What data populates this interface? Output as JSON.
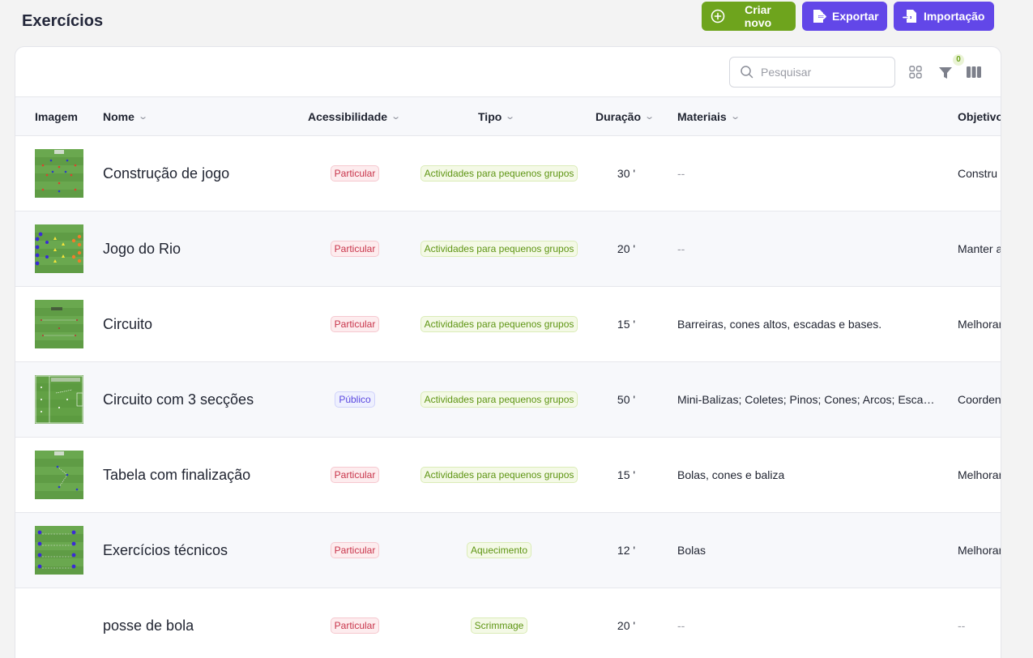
{
  "page": {
    "title": "Exercícios"
  },
  "actions": {
    "create_label": "Criar novo",
    "export_label": "Exportar",
    "import_label": "Importação"
  },
  "toolbar": {
    "search_placeholder": "Pesquisar",
    "filter_count": "0"
  },
  "columns": {
    "image": "Imagem",
    "name": "Nome",
    "accessibility": "Acessibilidade",
    "type": "Tipo",
    "duration": "Duração",
    "materials": "Materiais",
    "objective": "Objetivo"
  },
  "colors": {
    "accent_green": "#6ea41d",
    "accent_purple": "#6247e8",
    "badge_private": "#c8344a",
    "badge_public": "#5b48e0",
    "badge_type": "#5e9513"
  },
  "rows": [
    {
      "name": "Construção de jogo",
      "access": "Particular",
      "access_kind": "private",
      "type": "Actividades para pequenos grupos",
      "duration": "30 '",
      "materials": "--",
      "objective": "Constru",
      "thumb": "pitch-a"
    },
    {
      "name": "Jogo do Rio",
      "access": "Particular",
      "access_kind": "private",
      "type": "Actividades para pequenos grupos",
      "duration": "20 '",
      "materials": "--",
      "objective": "Manter a",
      "thumb": "pitch-b"
    },
    {
      "name": "Circuito",
      "access": "Particular",
      "access_kind": "private",
      "type": "Actividades para pequenos grupos",
      "duration": "15 '",
      "materials": "Barreiras, cones altos, escadas e bases.",
      "objective": "Melhorar",
      "thumb": "pitch-c"
    },
    {
      "name": "Circuito com 3 secções",
      "access": "Público",
      "access_kind": "public",
      "type": "Actividades para pequenos grupos",
      "duration": "50 '",
      "materials": "Mini-Balizas; Coletes; Pinos; Cones; Arcos; Escadas",
      "objective": "Coorden",
      "thumb": "pitch-d"
    },
    {
      "name": "Tabela com finalização",
      "access": "Particular",
      "access_kind": "private",
      "type": "Actividades para pequenos grupos",
      "duration": "15 '",
      "materials": "Bolas, cones e baliza",
      "objective": "Melhorar",
      "thumb": "pitch-e"
    },
    {
      "name": "Exercícios técnicos",
      "access": "Particular",
      "access_kind": "private",
      "type": "Aquecimento",
      "duration": "12 '",
      "materials": "Bolas",
      "objective": "Melhorar",
      "thumb": "pitch-f"
    },
    {
      "name": "posse de bola",
      "access": "Particular",
      "access_kind": "private",
      "type": "Scrimmage",
      "duration": "20 '",
      "materials": "--",
      "objective": "--",
      "thumb": ""
    }
  ]
}
